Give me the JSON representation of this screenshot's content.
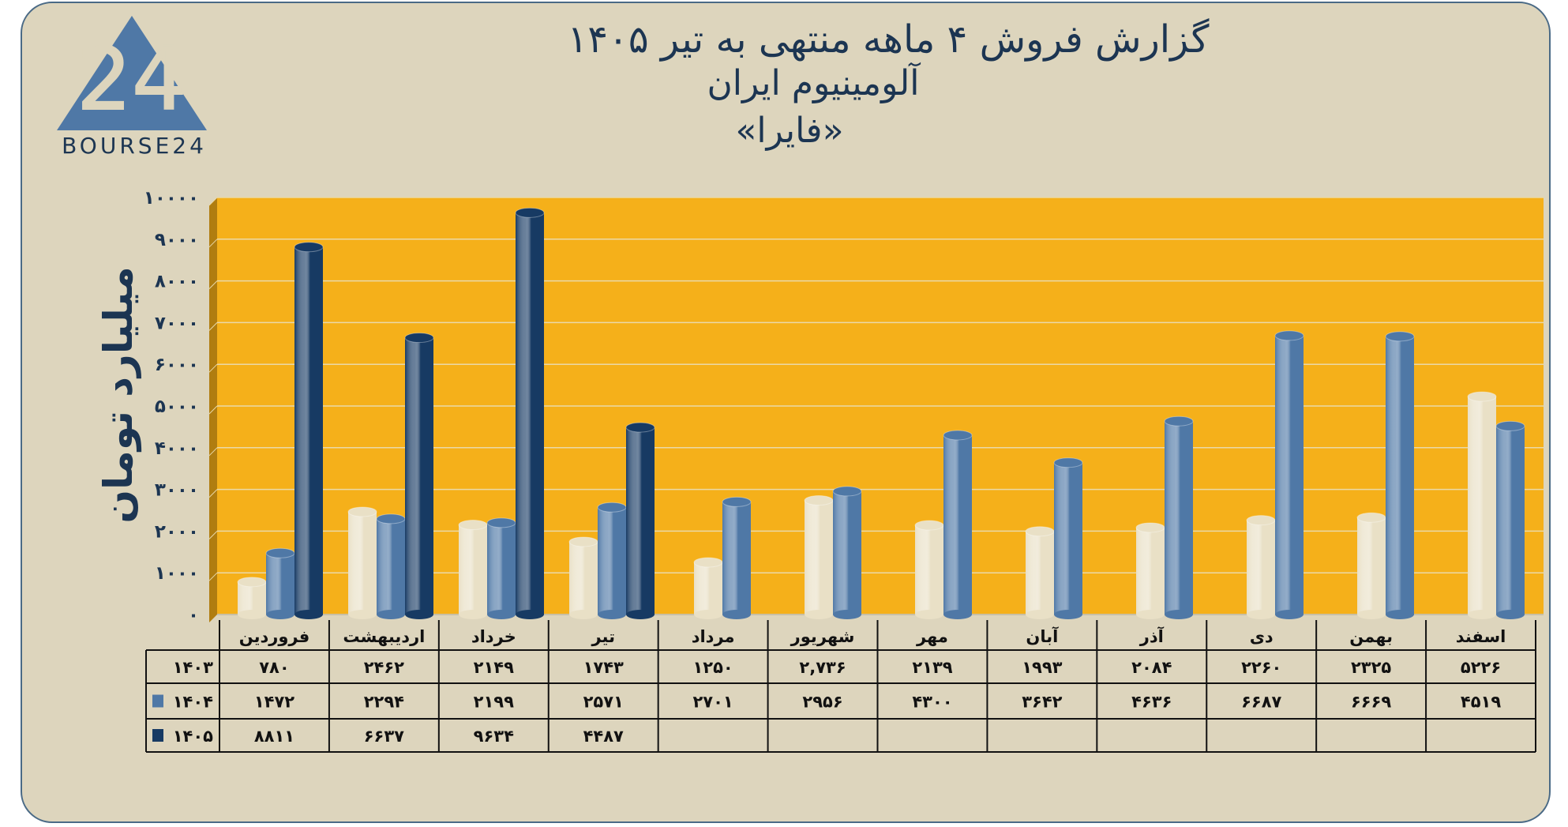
{
  "title": {
    "line1": "گزارش  فروش ۴ ماهه منتهی به تیر ۱۴۰۵",
    "line2": "آلومینیوم ایران",
    "line3": "«فایرا»"
  },
  "logo": {
    "text": "BOURSE24",
    "mark": "24"
  },
  "colors": {
    "background": "#ddd5bd",
    "plot_area": "#f5b01a",
    "series_1403": "#e9e0c6",
    "series_1404": "#4f78a6",
    "series_1405": "#173a63",
    "text": "#1c3552"
  },
  "chart_data": {
    "type": "bar",
    "ylabel": "میلیارد تومان",
    "ylim": [
      0,
      10000
    ],
    "yticks": [
      "۰",
      "۱۰۰۰",
      "۲۰۰۰",
      "۳۰۰۰",
      "۴۰۰۰",
      "۵۰۰۰",
      "۶۰۰۰",
      "۷۰۰۰",
      "۸۰۰۰",
      "۹۰۰۰",
      "۱۰۰۰۰"
    ],
    "grid": true,
    "legend": "table-left",
    "categories": [
      "فروردین",
      "اردیبهشت",
      "خرداد",
      "تیر",
      "مرداد",
      "شهریور",
      "مهر",
      "آبان",
      "آذر",
      "دی",
      "بهمن",
      "اسفند"
    ],
    "series": [
      {
        "name": "۱۴۰۳",
        "values": [
          780,
          2462,
          2149,
          1743,
          1250,
          2736,
          2139,
          1993,
          2084,
          2260,
          2325,
          5226
        ],
        "labels": [
          "۷۸۰",
          "۲۴۶۲",
          "۲۱۴۹",
          "۱۷۴۳",
          "۱۲۵۰",
          "۲,۷۳۶",
          "۲۱۳۹",
          "۱۹۹۳",
          "۲۰۸۴",
          "۲۲۶۰",
          "۲۳۲۵",
          "۵۲۲۶"
        ]
      },
      {
        "name": "۱۴۰۴",
        "values": [
          1472,
          2294,
          2199,
          2571,
          2701,
          2956,
          4300,
          3642,
          4636,
          6687,
          6669,
          4519
        ],
        "labels": [
          "۱۴۷۲",
          "۲۲۹۴",
          "۲۱۹۹",
          "۲۵۷۱",
          "۲۷۰۱",
          "۲۹۵۶",
          "۴۳۰۰",
          "۳۶۴۲",
          "۴۶۳۶",
          "۶۶۸۷",
          "۶۶۶۹",
          "۴۵۱۹"
        ]
      },
      {
        "name": "۱۴۰۵",
        "values": [
          8811,
          6637,
          9634,
          4487,
          null,
          null,
          null,
          null,
          null,
          null,
          null,
          null
        ],
        "labels": [
          "۸۸۱۱",
          "۶۶۳۷",
          "۹۶۳۴",
          "۴۴۸۷",
          "",
          "",
          "",
          "",
          "",
          "",
          "",
          ""
        ]
      }
    ]
  }
}
